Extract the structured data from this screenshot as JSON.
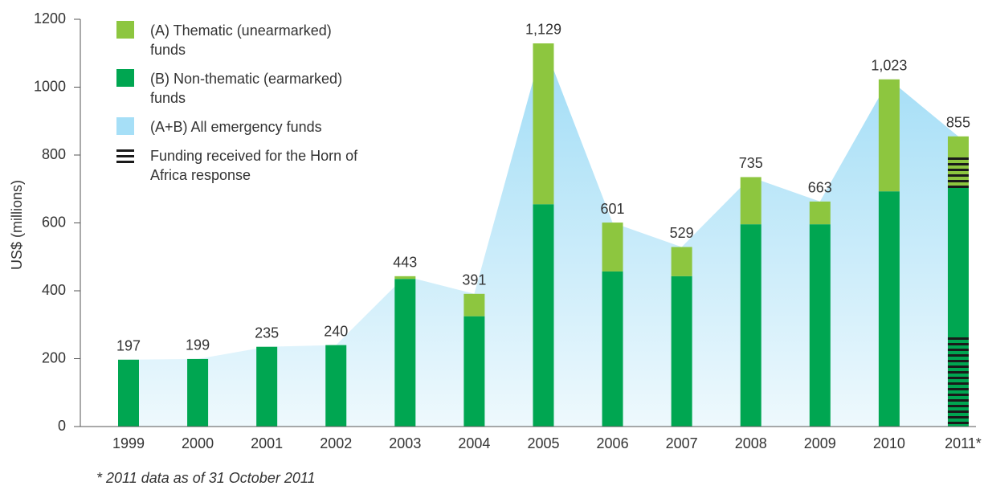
{
  "chart_data": {
    "type": "stacked-bar-area",
    "y_label": "US$ (millions)",
    "categories": [
      "1999",
      "2000",
      "2001",
      "2002",
      "2003",
      "2004",
      "2005",
      "2006",
      "2007",
      "2008",
      "2009",
      "2010",
      "2011*"
    ],
    "series": [
      {
        "name": "(A) Thematic (unearmarked) funds",
        "color": "#8dc63f",
        "values": [
          0,
          0,
          0,
          0,
          8,
          66,
          474,
          144,
          86,
          139,
          67,
          330,
          152
        ]
      },
      {
        "name": "(B) Non-thematic (earmarked) funds",
        "color": "#00a651",
        "values": [
          197,
          199,
          235,
          240,
          435,
          325,
          655,
          457,
          443,
          596,
          596,
          693,
          703
        ]
      },
      {
        "name": "(A+B) All emergency funds",
        "color": "#a6dff7",
        "values": [
          197,
          199,
          235,
          240,
          443,
          391,
          1129,
          601,
          529,
          735,
          663,
          1023,
          855
        ],
        "value_labels": [
          "197",
          "199",
          "235",
          "240",
          "443",
          "391",
          "1,129",
          "601",
          "529",
          "735",
          "663",
          "1,023",
          "855"
        ]
      }
    ],
    "hatch": {
      "name": "Funding received for the Horn of Africa response",
      "category": 12,
      "ranges": [
        [
          0,
          265
        ],
        [
          700,
          800
        ]
      ]
    },
    "ylim": [
      0,
      1200
    ],
    "yticks": [
      0,
      200,
      400,
      600,
      800,
      1000,
      1200
    ],
    "footnote": "* 2011 data as of 31 October 2011"
  }
}
